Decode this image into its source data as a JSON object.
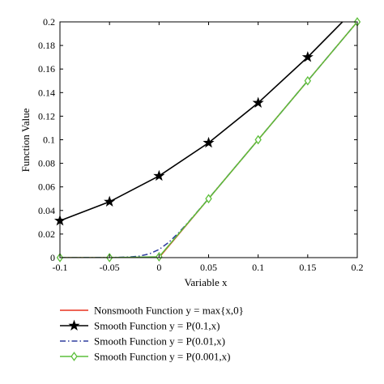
{
  "chart_data": {
    "type": "line",
    "xlabel": "Variable x",
    "ylabel": "Function Value",
    "xlim": [
      -0.1,
      0.2
    ],
    "ylim": [
      0,
      0.2
    ],
    "x_ticks": [
      "-0.1",
      "-0.05",
      "0",
      "0.05",
      "0.1",
      "0.15",
      "0.2"
    ],
    "y_ticks": [
      "0",
      "0.02",
      "0.04",
      "0.06",
      "0.08",
      "0.1",
      "0.12",
      "0.14",
      "0.16",
      "0.18",
      "0.2"
    ],
    "grid": false,
    "legend_position": "below",
    "series": [
      {
        "name": "Nonsmooth Function y = max{x,0}",
        "color": "#e8321e",
        "marker": "none",
        "dash": "solid",
        "x": [
          -0.1,
          0,
          0.2
        ],
        "y": [
          0,
          0,
          0.2
        ]
      },
      {
        "name": "Smooth Function y = P(0.1,x)",
        "color": "#000000",
        "marker": "star",
        "dash": "solid",
        "x": [
          -0.1,
          -0.05,
          0,
          0.05,
          0.1,
          0.15,
          0.2
        ],
        "y": [
          0.0313,
          0.0474,
          0.0693,
          0.0974,
          0.1313,
          0.1701,
          0.2127
        ]
      },
      {
        "name": "Smooth Function y = P(0.01,x)",
        "color": "#2e3d9e",
        "marker": "none",
        "dash": "dashdot",
        "x": [
          -0.1,
          -0.05,
          -0.03,
          -0.02,
          -0.01,
          0,
          0.01,
          0.02,
          0.03,
          0.05,
          0.1,
          0.15,
          0.2
        ],
        "y": [
          0,
          0.0001,
          0.0005,
          0.0013,
          0.0031,
          0.0069,
          0.0131,
          0.0213,
          0.0305,
          0.0501,
          0.1,
          0.15,
          0.2
        ]
      },
      {
        "name": "Smooth Function y = P(0.001,x)",
        "color": "#5cbf3a",
        "marker": "diamond",
        "dash": "solid",
        "x": [
          -0.1,
          -0.05,
          0,
          0.05,
          0.1,
          0.15,
          0.2
        ],
        "y": [
          0,
          0,
          0.0007,
          0.05,
          0.1,
          0.15,
          0.2
        ]
      }
    ]
  }
}
